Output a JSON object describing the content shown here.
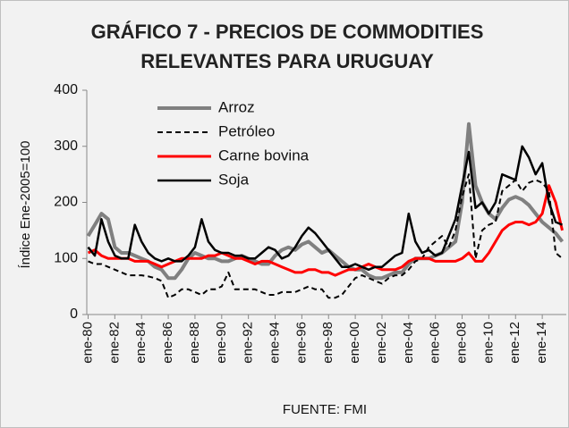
{
  "chart_data": {
    "type": "line",
    "title": "GRÁFICO 7 - PRECIOS DE COMMODITIES RELEVANTES PARA URUGUAY",
    "y_label": "Índice Ene-2005=100",
    "source": "FUENTE: FMI",
    "x": [
      1980,
      1980.5,
      1981,
      1981.5,
      1982,
      1982.5,
      1983,
      1983.5,
      1984,
      1984.5,
      1985,
      1985.5,
      1986,
      1986.5,
      1987,
      1987.5,
      1988,
      1988.5,
      1989,
      1989.5,
      1990,
      1990.5,
      1991,
      1991.5,
      1992,
      1992.5,
      1993,
      1993.5,
      1994,
      1994.5,
      1995,
      1995.5,
      1996,
      1996.5,
      1997,
      1997.5,
      1998,
      1998.5,
      1999,
      1999.5,
      2000,
      2000.5,
      2001,
      2001.5,
      2002,
      2002.5,
      2003,
      2003.5,
      2004,
      2004.5,
      2005,
      2005.5,
      2006,
      2006.5,
      2007,
      2007.5,
      2008,
      2008.5,
      2009,
      2009.5,
      2010,
      2010.5,
      2011,
      2011.5,
      2012,
      2012.5,
      2013,
      2013.5,
      2014,
      2014.5,
      2015,
      2015.5
    ],
    "xlim": [
      1979.9,
      2015.8
    ],
    "xticks": [
      {
        "value": 1980,
        "label": "ene-80"
      },
      {
        "value": 1982,
        "label": "ene-82"
      },
      {
        "value": 1984,
        "label": "ene-84"
      },
      {
        "value": 1986,
        "label": "ene-86"
      },
      {
        "value": 1988,
        "label": "ene-88"
      },
      {
        "value": 1990,
        "label": "ene-90"
      },
      {
        "value": 1992,
        "label": "ene-92"
      },
      {
        "value": 1994,
        "label": "ene-94"
      },
      {
        "value": 1996,
        "label": "ene-96"
      },
      {
        "value": 1998,
        "label": "ene-98"
      },
      {
        "value": 2000,
        "label": "ene-00"
      },
      {
        "value": 2002,
        "label": "ene-02"
      },
      {
        "value": 2004,
        "label": "ene-04"
      },
      {
        "value": 2006,
        "label": "ene-06"
      },
      {
        "value": 2008,
        "label": "ene-08"
      },
      {
        "value": 2010,
        "label": "ene-10"
      },
      {
        "value": 2012,
        "label": "ene-12"
      },
      {
        "value": 2014,
        "label": "ene-14"
      }
    ],
    "ylim": [
      0,
      400
    ],
    "yticks": [
      0,
      100,
      200,
      300,
      400
    ],
    "legend": "top-left",
    "series": [
      {
        "name": "Arroz",
        "color": "#808080",
        "width": 4,
        "dashed": false,
        "values": [
          140,
          160,
          180,
          170,
          120,
          110,
          110,
          105,
          100,
          95,
          85,
          80,
          65,
          65,
          80,
          100,
          110,
          105,
          100,
          100,
          95,
          95,
          100,
          105,
          100,
          95,
          90,
          90,
          105,
          115,
          120,
          115,
          125,
          130,
          120,
          110,
          115,
          105,
          95,
          85,
          80,
          80,
          70,
          65,
          65,
          70,
          75,
          75,
          90,
          100,
          100,
          100,
          105,
          110,
          120,
          130,
          200,
          340,
          230,
          200,
          180,
          170,
          190,
          205,
          210,
          205,
          195,
          180,
          165,
          155,
          145,
          130
        ]
      },
      {
        "name": "Petróleo",
        "color": "#000000",
        "width": 2,
        "dashed": true,
        "values": [
          95,
          90,
          90,
          85,
          80,
          75,
          70,
          70,
          70,
          68,
          65,
          60,
          30,
          35,
          45,
          45,
          40,
          35,
          45,
          45,
          50,
          75,
          45,
          45,
          45,
          45,
          40,
          35,
          35,
          40,
          40,
          40,
          45,
          50,
          45,
          45,
          30,
          30,
          35,
          50,
          65,
          70,
          65,
          60,
          55,
          65,
          70,
          70,
          80,
          95,
          100,
          120,
          130,
          140,
          120,
          150,
          210,
          250,
          100,
          150,
          160,
          165,
          220,
          230,
          240,
          220,
          235,
          240,
          235,
          220,
          110,
          100
        ]
      },
      {
        "name": "Carne bovina",
        "color": "#ff0000",
        "width": 3,
        "dashed": false,
        "values": [
          110,
          115,
          105,
          100,
          100,
          100,
          100,
          95,
          95,
          95,
          90,
          85,
          90,
          95,
          100,
          100,
          100,
          100,
          105,
          105,
          110,
          105,
          100,
          100,
          95,
          90,
          95,
          95,
          90,
          85,
          80,
          75,
          75,
          80,
          80,
          75,
          75,
          70,
          75,
          80,
          80,
          85,
          90,
          85,
          80,
          80,
          80,
          85,
          95,
          100,
          100,
          100,
          95,
          95,
          95,
          95,
          100,
          110,
          95,
          95,
          110,
          130,
          150,
          160,
          165,
          165,
          160,
          165,
          180,
          230,
          200,
          150
        ]
      },
      {
        "name": "Soja",
        "color": "#000000",
        "width": 2.5,
        "dashed": false,
        "values": [
          120,
          105,
          170,
          130,
          105,
          100,
          100,
          160,
          130,
          110,
          100,
          95,
          100,
          95,
          95,
          105,
          120,
          170,
          130,
          115,
          110,
          110,
          105,
          105,
          100,
          100,
          110,
          120,
          115,
          100,
          105,
          120,
          140,
          155,
          145,
          130,
          115,
          100,
          85,
          85,
          90,
          85,
          80,
          85,
          85,
          95,
          105,
          110,
          180,
          130,
          110,
          115,
          105,
          110,
          140,
          170,
          230,
          290,
          190,
          200,
          180,
          200,
          250,
          245,
          240,
          300,
          280,
          250,
          270,
          200,
          165,
          160
        ]
      }
    ]
  }
}
